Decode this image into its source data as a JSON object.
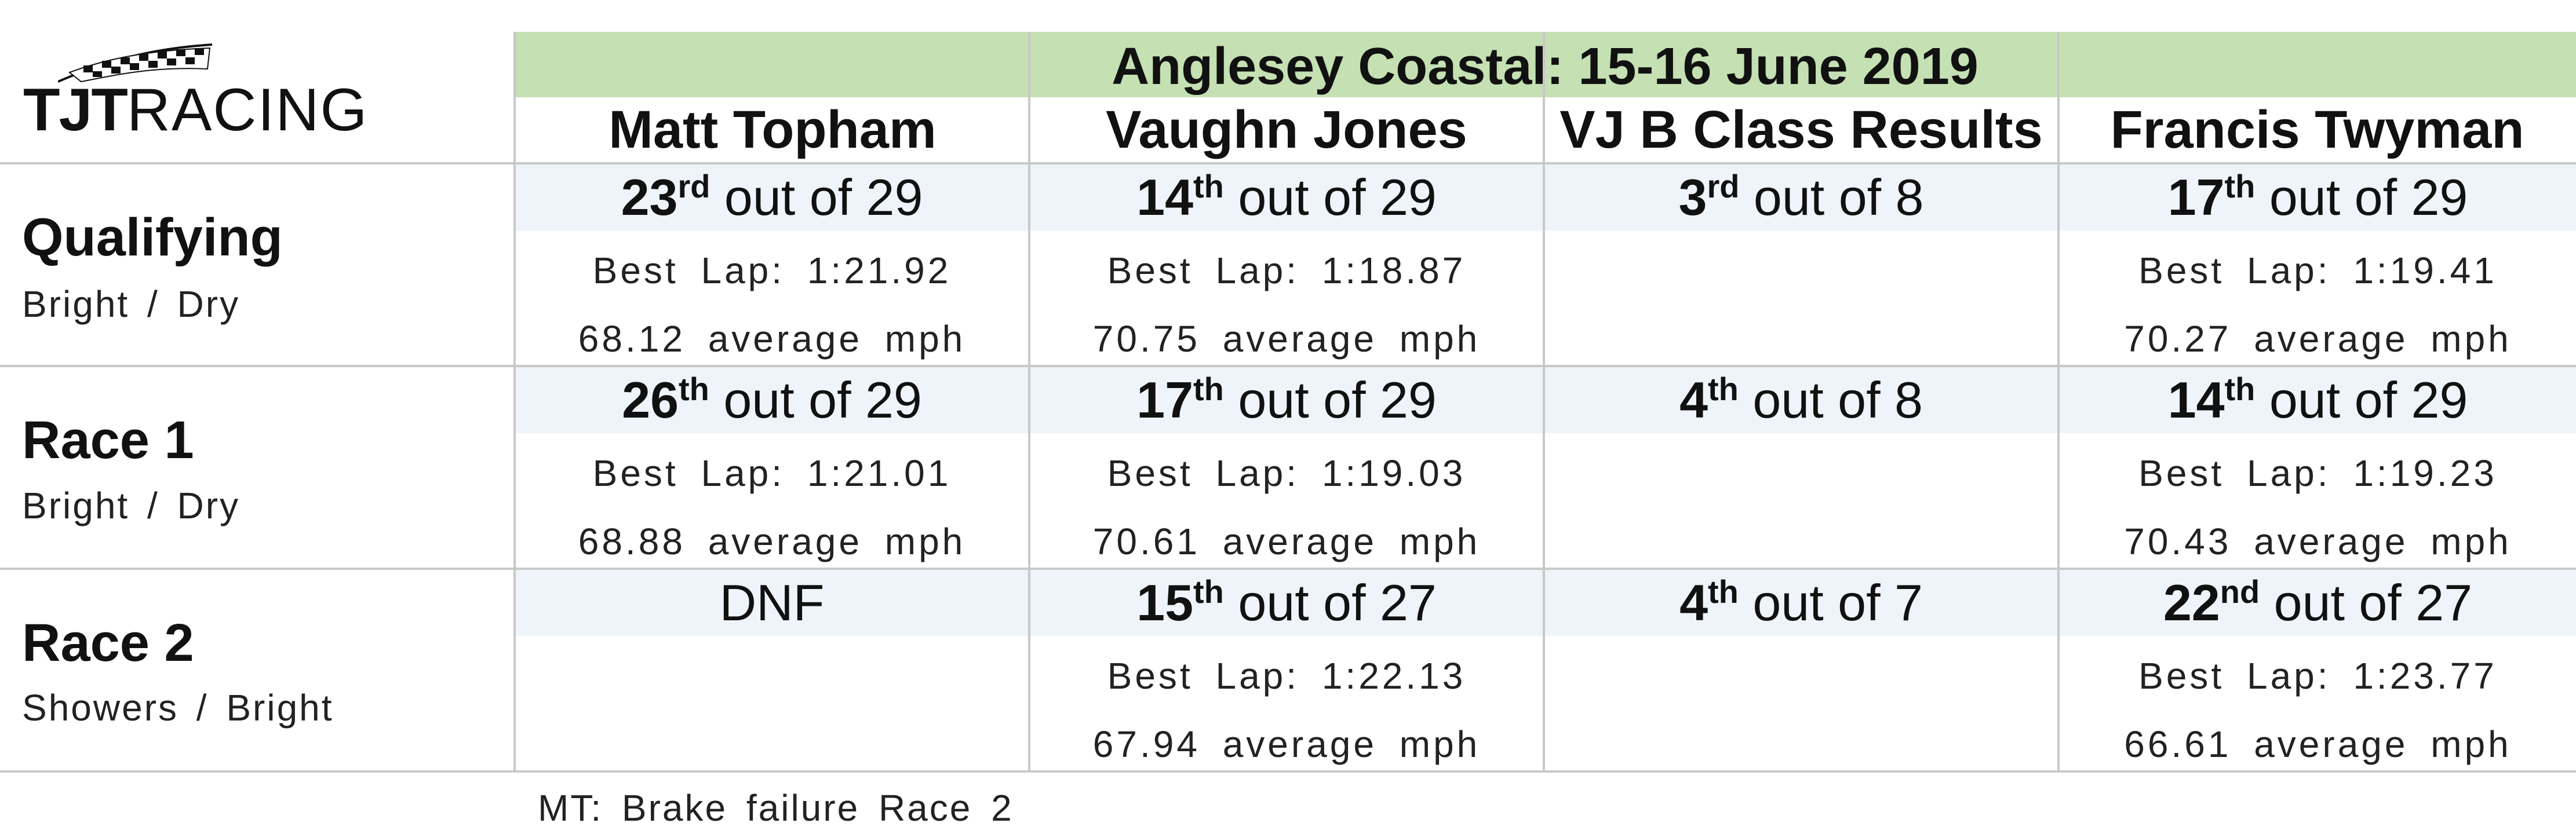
{
  "logo": {
    "text_bold": "TJT",
    "text_light": "RACING"
  },
  "event_title": "Anglesey Coastal: 15-16 June 2019",
  "columns": [
    "Matt Topham",
    "Vaughn Jones",
    "VJ B Class Results",
    "Francis Twyman"
  ],
  "sessions": [
    {
      "title": "Qualifying",
      "conditions": "Bright / Dry",
      "cells": [
        {
          "place_num": "23",
          "place_suffix": "rd",
          "place_rest": " out of 29",
          "best_lap": "Best Lap: 1:21.92",
          "avg_speed": "68.12 average mph"
        },
        {
          "place_num": "14",
          "place_suffix": "th",
          "place_rest": " out of 29",
          "best_lap": "Best Lap: 1:18.87",
          "avg_speed": "70.75 average mph"
        },
        {
          "place_num": "3",
          "place_suffix": "rd",
          "place_rest": " out of 8",
          "best_lap": "",
          "avg_speed": ""
        },
        {
          "place_num": "17",
          "place_suffix": "th",
          "place_rest": " out of 29",
          "best_lap": "Best Lap: 1:19.41",
          "avg_speed": "70.27 average mph"
        }
      ]
    },
    {
      "title": "Race 1",
      "conditions": "Bright / Dry",
      "cells": [
        {
          "place_num": "26",
          "place_suffix": "th",
          "place_rest": " out of 29",
          "best_lap": "Best Lap: 1:21.01",
          "avg_speed": "68.88 average mph"
        },
        {
          "place_num": "17",
          "place_suffix": "th",
          "place_rest": " out of 29",
          "best_lap": "Best Lap: 1:19.03",
          "avg_speed": "70.61 average mph"
        },
        {
          "place_num": "4",
          "place_suffix": "th",
          "place_rest": " out of 8",
          "best_lap": "",
          "avg_speed": ""
        },
        {
          "place_num": "14",
          "place_suffix": "th",
          "place_rest": " out of 29",
          "best_lap": "Best Lap: 1:19.23",
          "avg_speed": "70.43 average mph"
        }
      ]
    },
    {
      "title": "Race 2",
      "conditions": "Showers / Bright",
      "cells": [
        {
          "place_num": "",
          "place_suffix": "",
          "place_rest": "DNF",
          "best_lap": "",
          "avg_speed": ""
        },
        {
          "place_num": "15",
          "place_suffix": "th",
          "place_rest": " out of 27",
          "best_lap": "Best Lap: 1:22.13",
          "avg_speed": "67.94 average mph"
        },
        {
          "place_num": "4",
          "place_suffix": "th",
          "place_rest": " out of 7",
          "best_lap": "",
          "avg_speed": ""
        },
        {
          "place_num": "22",
          "place_suffix": "nd",
          "place_rest": " out of 27",
          "best_lap": "Best Lap: 1:23.77",
          "avg_speed": "66.61 average mph"
        }
      ]
    }
  ],
  "footnote": "MT: Brake failure Race 2",
  "colors": {
    "header_band": "#c5e0b3",
    "row_band": "#eef4f9",
    "grid_line": "#c8c8c8"
  },
  "icons": [
    "checkered-flag-icon"
  ]
}
